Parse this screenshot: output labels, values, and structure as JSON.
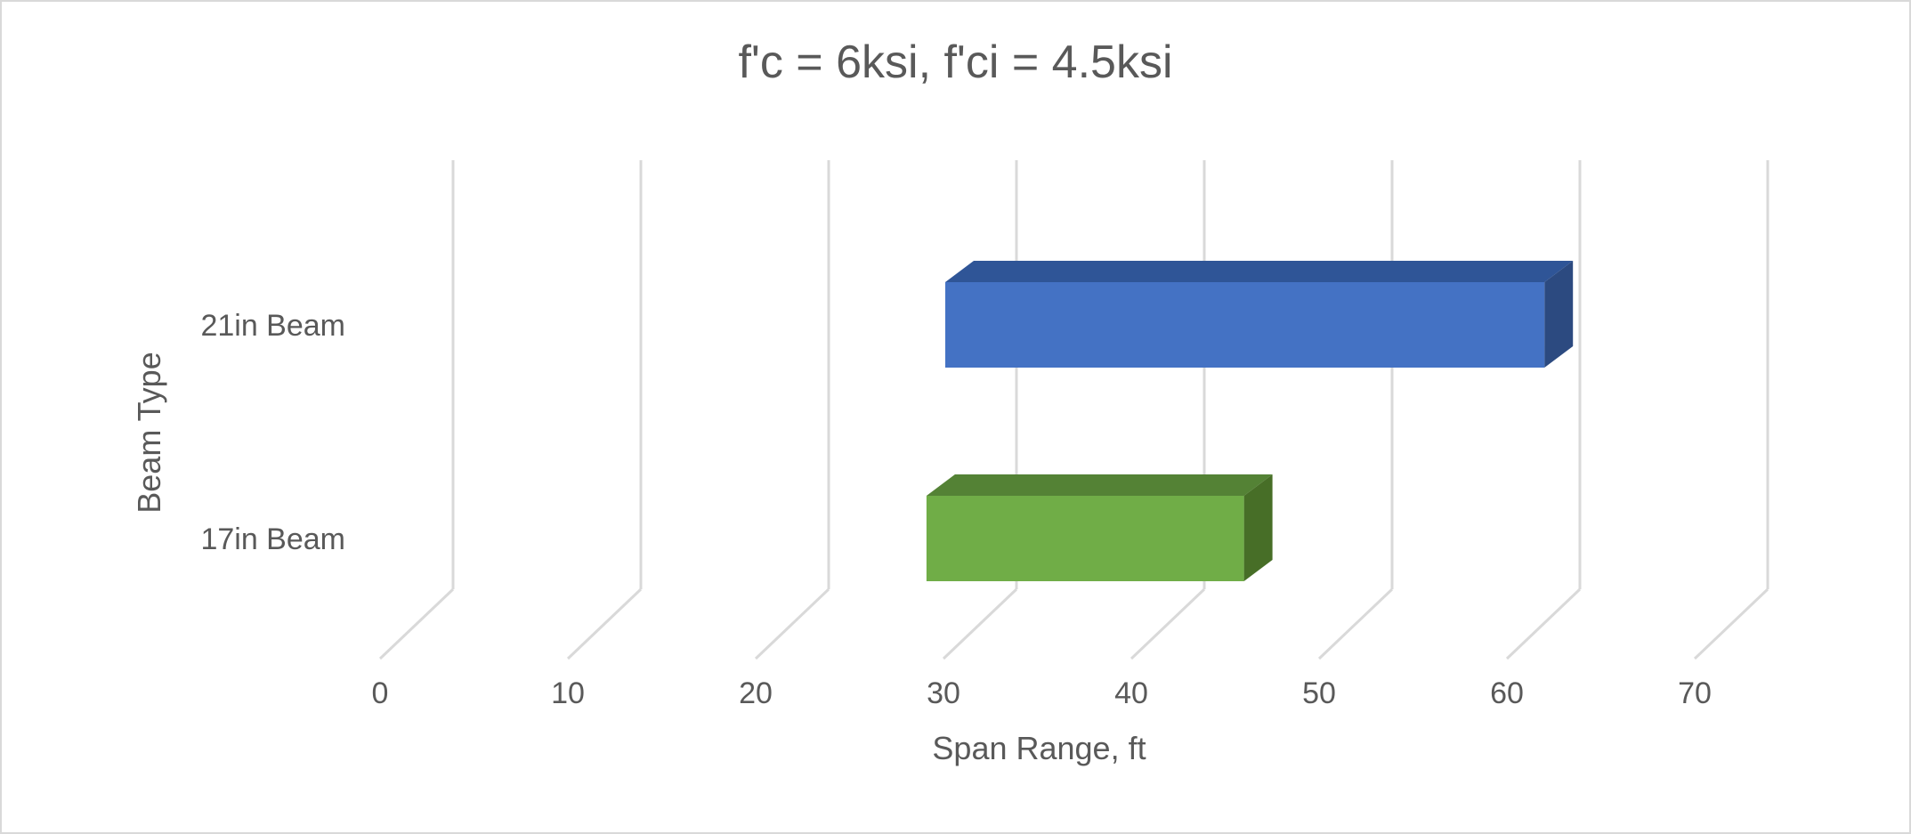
{
  "chart_data": {
    "type": "bar",
    "orientation": "horizontal",
    "style": "3d-floating-range",
    "title": "f'c = 6ksi, f'ci = 4.5ksi",
    "xlabel": "Span Range, ft",
    "ylabel": "Beam Type",
    "xlim": [
      0,
      70
    ],
    "xticks": [
      "0",
      "10",
      "20",
      "30",
      "40",
      "50",
      "60",
      "70"
    ],
    "grid": true,
    "categories": [
      "17in Beam",
      "21in Beam"
    ],
    "series": [
      {
        "ranges": [
          [
            29,
            46
          ],
          [
            30,
            62
          ]
        ],
        "colors": [
          "#70ad47",
          "#4472c4"
        ],
        "top_colors": [
          "#548235",
          "#2f5597"
        ],
        "side_colors": [
          "#476e27",
          "#2c4a80"
        ]
      }
    ]
  }
}
